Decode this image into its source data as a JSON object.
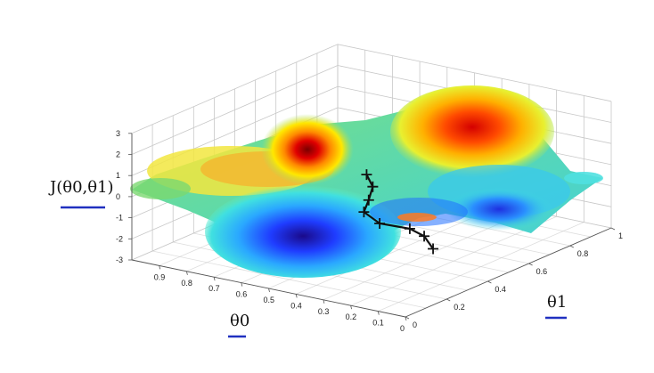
{
  "chart_data": {
    "type": "surface",
    "zlabel": "J(θ0,θ1)",
    "xlabel": "θ0",
    "ylabel": "θ1",
    "z_ticks": [
      "-3",
      "-2",
      "-1",
      "0",
      "1",
      "2",
      "3"
    ],
    "zlim": [
      -3,
      3
    ],
    "theta0_ticks": [
      "0.9",
      "0.8",
      "0.7",
      "0.6",
      "0.5",
      "0.4",
      "0.3",
      "0.2",
      "0.1",
      "0"
    ],
    "theta0_lim": [
      0,
      1
    ],
    "theta1_ticks": [
      "0",
      "0.2",
      "0.4",
      "0.6",
      "0.8",
      "1"
    ],
    "theta1_lim": [
      0,
      1
    ],
    "colormap": "jet",
    "grid": true,
    "descent_path": [
      {
        "theta0": 0.33,
        "theta1": 0.25,
        "z": 1.8
      },
      {
        "theta0": 0.33,
        "theta1": 0.28,
        "z": 1.1
      },
      {
        "theta0": 0.36,
        "theta1": 0.3,
        "z": 0.3
      },
      {
        "theta0": 0.4,
        "theta1": 0.33,
        "z": -0.5
      },
      {
        "theta0": 0.38,
        "theta1": 0.38,
        "z": -1.2
      },
      {
        "theta0": 0.3,
        "theta1": 0.42,
        "z": -1.4
      },
      {
        "theta0": 0.27,
        "theta1": 0.45,
        "z": -1.8
      },
      {
        "theta0": 0.26,
        "theta1": 0.48,
        "z": -2.5
      }
    ]
  }
}
